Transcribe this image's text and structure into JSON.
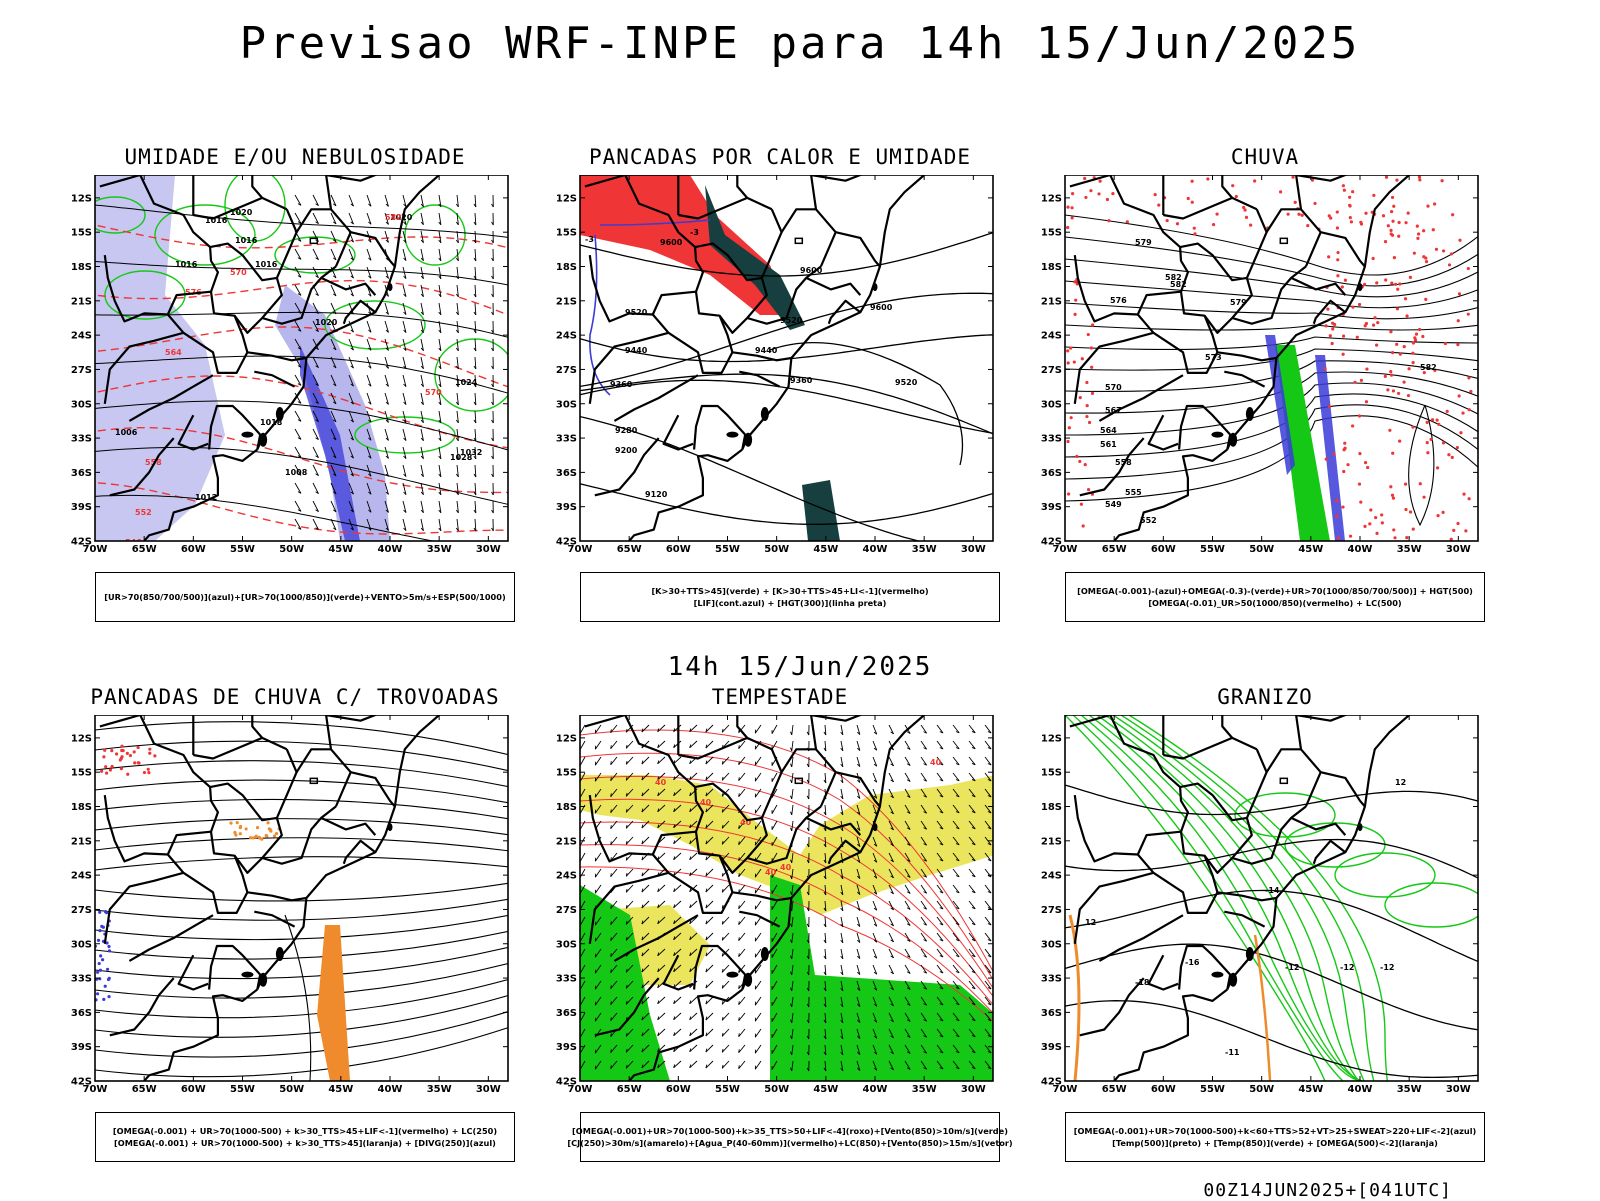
{
  "header": {
    "title": "Previsao WRF-INPE  para 14h 15/Jun/2025"
  },
  "subtitle": "14h 15/Jun/2025",
  "footer": "00Z14JUN2025+[041UTC]",
  "axes": {
    "lat_ticks": [
      "12S",
      "15S",
      "18S",
      "21S",
      "24S",
      "27S",
      "30S",
      "33S",
      "36S",
      "39S",
      "42S"
    ],
    "lon_ticks": [
      "70W",
      "65W",
      "60W",
      "55W",
      "50W",
      "45W",
      "40W",
      "35W",
      "30W"
    ]
  },
  "colors": {
    "blue": "#3b3bd8",
    "light_blue": "#9999e6",
    "green": "#16c816",
    "red": "#ef3535",
    "dark_teal": "#173f3f",
    "yellow": "#e6e040",
    "orange": "#ef8b2c",
    "black": "#000000"
  },
  "panels": [
    {
      "id": "umidade",
      "title": "UMIDADE E/OU NEBULOSIDADE",
      "legend": [
        "[UR>70(850/700/500)](azul)+[UR>70(1000/850)](verde)+VENTO>5m/s+ESP(500/1000)"
      ],
      "contour_labels": [
        "1016",
        "1016",
        "1016",
        "1016",
        "1020",
        "1020",
        "1020",
        "1024",
        "1028",
        "1032",
        "1012",
        "1008",
        "1006",
        "1018",
        "570",
        "576",
        "564",
        "558",
        "552",
        "546",
        "582",
        "570"
      ]
    },
    {
      "id": "pancadas_calor",
      "title": "PANCADAS POR CALOR E UMIDADE",
      "legend": [
        "[K>30+TTS>45](verde) + [K>30+TTS>45+LI<-1](vermelho)",
        "[LIF](cont.azul) + [HGT(300)](linha preta)"
      ],
      "contour_labels": [
        "9600",
        "9600",
        "9600",
        "9520",
        "9520",
        "9520",
        "9440",
        "9440",
        "9360",
        "9360",
        "9280",
        "9200",
        "9120",
        "-3",
        "-3"
      ]
    },
    {
      "id": "chuva",
      "title": "CHUVA",
      "legend": [
        "[OMEGA(-0.001)-(azul)+OMEGA(-0.3)-(verde)+UR>70(1000/850/700/500)] + HGT(500)",
        "[OMEGA(-0.01)_UR>50(1000/850)(vermelho) + LC(500)"
      ],
      "contour_labels": [
        "582",
        "582",
        "579",
        "576",
        "573",
        "570",
        "567",
        "564",
        "561",
        "558",
        "555",
        "552",
        "549",
        "582",
        "579"
      ]
    },
    {
      "id": "pancadas_trovoadas",
      "title": "PANCADAS DE CHUVA C/ TROVOADAS",
      "legend": [
        "[OMEGA(-0.001) + UR>70(1000-500) + k>30_TTS>45+LIF<-1](vermelho) + LC(250)",
        "[OMEGA(-0.001) + UR>70(1000-500) + k>30_TTS>45](laranja) + [DIVG(250)](azul)"
      ],
      "contour_labels": []
    },
    {
      "id": "tempestade",
      "title": "TEMPESTADE",
      "legend": [
        "[OMEGA(-0.001)+UR>70(1000-500)+k>35_TTS>50+LIF<-4](roxo)+[Vento(850)>10m/s](verde)",
        "[CJ(250)>30m/s](amarelo)+[Agua_P(40-60mm)](vermelho)+LC(850)+[Vento(850)>15m/s](vetor)"
      ],
      "contour_labels": [
        "40",
        "40",
        "40",
        "40",
        "40",
        "40"
      ]
    },
    {
      "id": "granizo",
      "title": "GRANIZO",
      "legend": [
        "[OMEGA(-0.001)+UR>70(1000-500)+k<60+TTS>52+VT>25+SWEAT>220+LIF<-2](azul)",
        "[Temp(500)](preto) + [Temp(850)](verde) + [OMEGA(500)<-2](laranja)"
      ],
      "contour_labels": [
        "-12",
        "-12",
        "-12",
        "-14",
        "-16",
        "-18",
        "-11",
        "12",
        "12"
      ]
    }
  ]
}
